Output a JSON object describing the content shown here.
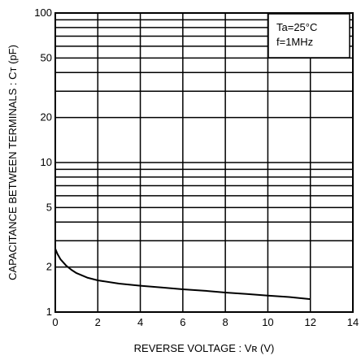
{
  "chart_data": {
    "type": "line",
    "title": "",
    "xlabel": "REVERSE VOLTAGE : Vʀ (V)",
    "ylabel": "CAPACITANCE BETWEEN TERMINALS : Cᴛ (pF)",
    "xlim": [
      0,
      14
    ],
    "ylim": [
      1,
      100
    ],
    "yscale": "log",
    "grid": true,
    "x_ticks": [
      "0",
      "2",
      "4",
      "6",
      "8",
      "10",
      "12",
      "14"
    ],
    "x_tick_values": [
      0,
      2,
      4,
      6,
      8,
      10,
      12,
      14
    ],
    "y_ticks": [
      "1",
      "2",
      "5",
      "10",
      "20",
      "50",
      "100"
    ],
    "y_tick_values": [
      1,
      2,
      5,
      10,
      20,
      50,
      100
    ],
    "annotations": [
      "Ta=25°C",
      "f=1MHz"
    ],
    "series": [
      {
        "x": [
          0,
          0.1,
          0.25,
          0.5,
          0.75,
          1,
          1.5,
          2,
          3,
          4,
          5,
          6,
          7,
          8,
          9,
          10,
          11,
          12
        ],
        "y": [
          2.65,
          2.45,
          2.25,
          2.05,
          1.92,
          1.82,
          1.7,
          1.63,
          1.55,
          1.5,
          1.46,
          1.42,
          1.39,
          1.35,
          1.32,
          1.29,
          1.26,
          1.22
        ]
      }
    ]
  }
}
